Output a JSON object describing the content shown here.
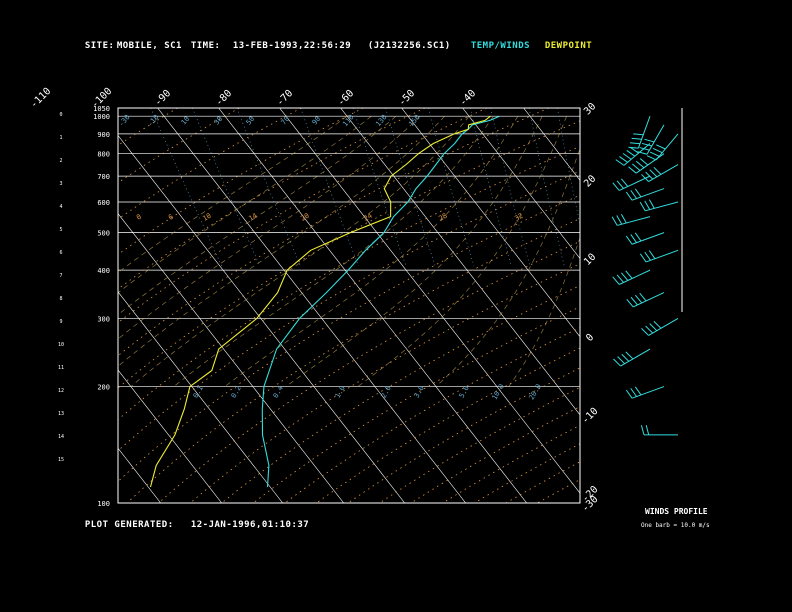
{
  "header": {
    "site_label": "SITE:",
    "site_value": "MOBILE, SC1",
    "time_label": "TIME:",
    "time_value": "13-FEB-1993,22:56:29",
    "file_value": "(J2132256.SC1)",
    "legend_temp": "TEMP/WINDS",
    "legend_dew": "DEWPOINT"
  },
  "footer": {
    "generated_label": "PLOT GENERATED:",
    "generated_value": "12-JAN-1996,01:10:37"
  },
  "winds_profile": {
    "title": "WINDS PROFILE",
    "note": "One barb = 10.0 m/s"
  },
  "colors": {
    "background": "#000000",
    "grid": "#ffffff",
    "isotherm": "#ffffff",
    "dry_adiabat": "#dd9944",
    "moist_adiabat": "#ccaa55",
    "mixing_ratio": "#66aacc",
    "temp": "#33dddd",
    "dewpoint": "#eeee33",
    "barb": "#33dddd"
  },
  "chart_data": {
    "type": "line",
    "title": "",
    "y_axis": {
      "name": "pressure",
      "scale": "log",
      "range": [
        1050,
        100
      ],
      "ticks": [
        1050,
        1000,
        900,
        800,
        700,
        600,
        500,
        400,
        300,
        200,
        100
      ],
      "tick_labels": [
        "1050",
        "1000",
        "900",
        "800",
        "700",
        "600",
        "500",
        "400",
        "300",
        "200",
        "100"
      ]
    },
    "height_axis": {
      "ticks": [
        0,
        1,
        2,
        3,
        4,
        5,
        6,
        7,
        8,
        9,
        10,
        11,
        12,
        13,
        14,
        15
      ],
      "tick_labels": [
        "0",
        "1",
        "2",
        "3",
        "4",
        "5",
        "6",
        "7",
        "8",
        "9",
        "10",
        "11",
        "12",
        "13",
        "14",
        "15"
      ]
    },
    "isotherms_top_labels": [
      "-110",
      "-100",
      "-90",
      "-80",
      "-70",
      "-60",
      "-50",
      "-40"
    ],
    "isotherms_right_labels": [
      "-30",
      "-20",
      "-10",
      "0",
      "10",
      "20",
      "30"
    ],
    "dry_adiabat_labels": [
      "-30",
      "-10",
      "10",
      "30",
      "50",
      "70",
      "90",
      "110",
      "130",
      "150"
    ],
    "moist_adiabat_labels": [
      "0",
      "6",
      "10",
      "14",
      "20",
      "24",
      "28",
      "32"
    ],
    "mixing_ratio_labels": [
      "0.1",
      "0.2",
      "0.4",
      "1.0",
      "2.0",
      "3.0",
      "5.0",
      "10.0",
      "20.0"
    ],
    "series": [
      {
        "name": "TEMP/WINDS",
        "pressure": [
          1000,
          975,
          950,
          925,
          900,
          850,
          800,
          750,
          700,
          650,
          600,
          550,
          500,
          450,
          400,
          350,
          300,
          250,
          200,
          175,
          150,
          125,
          110
        ],
        "temperature": [
          15.0,
          12.8,
          9.6,
          8.0,
          6.8,
          4.0,
          1.2,
          -1.6,
          -4.6,
          -7.8,
          -11.2,
          -15.0,
          -19.0,
          -24.0,
          -29.5,
          -36.0,
          -43.5,
          -51.5,
          -58.0,
          -61.5,
          -64.5,
          -67.5,
          -70.5
        ]
      },
      {
        "name": "DEWPOINT",
        "pressure": [
          1000,
          975,
          950,
          925,
          900,
          850,
          800,
          750,
          700,
          650,
          600,
          550,
          500,
          450,
          400,
          350,
          300,
          250,
          220,
          200,
          175,
          150,
          125,
          110
        ],
        "dewpoint": [
          13.5,
          12.0,
          9.0,
          8.0,
          5.5,
          0.5,
          -3.0,
          -6.5,
          -10.5,
          -13.0,
          -14.0,
          -15.5,
          -24.5,
          -33.0,
          -39.5,
          -44.0,
          -50.5,
          -61.0,
          -64.5,
          -70.5,
          -74.0,
          -79.0,
          -86.0,
          -89.5
        ]
      }
    ],
    "winds": {
      "pressure": [
        1000,
        950,
        900,
        850,
        800,
        750,
        700,
        650,
        600,
        550,
        500,
        450,
        400,
        350,
        300,
        250,
        200,
        150
      ],
      "direction_deg": [
        200,
        210,
        220,
        230,
        235,
        240,
        245,
        250,
        255,
        255,
        250,
        250,
        245,
        245,
        240,
        240,
        250,
        270
      ],
      "speed_ms": [
        35,
        40,
        40,
        45,
        40,
        35,
        30,
        30,
        30,
        30,
        30,
        25,
        35,
        40,
        40,
        35,
        30,
        20
      ]
    },
    "grid": true,
    "legend_position": "top"
  }
}
